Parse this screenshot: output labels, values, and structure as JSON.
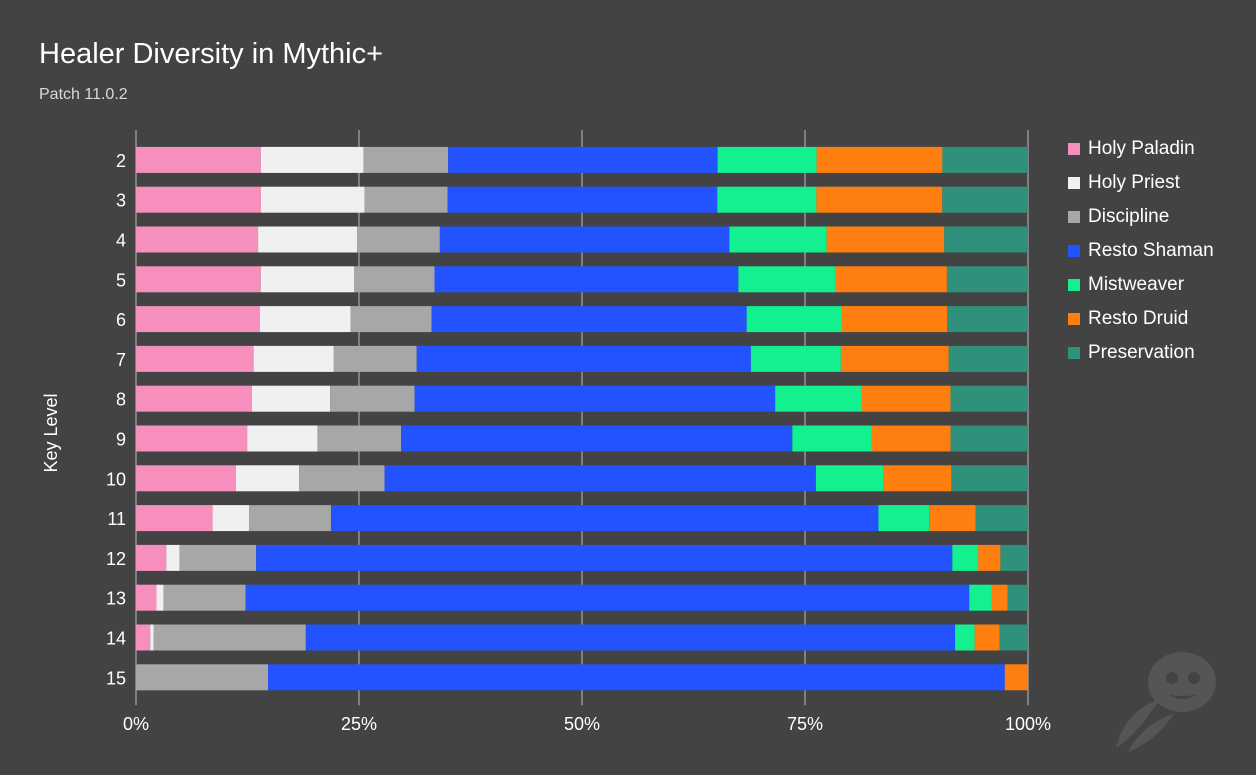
{
  "chart_data": {
    "type": "bar",
    "orientation": "horizontal",
    "stacked": "percent",
    "title": "Healer Diversity in Mythic+",
    "subtitle": "Patch 11.0.2",
    "ylabel": "Key Level",
    "xlabel": "",
    "xlim": [
      0,
      1
    ],
    "x_ticks": [
      "0%",
      "25%",
      "50%",
      "75%",
      "100%"
    ],
    "legend_position": "right",
    "categories": [
      "2",
      "3",
      "4",
      "5",
      "6",
      "7",
      "8",
      "9",
      "10",
      "11",
      "12",
      "13",
      "14",
      "15"
    ],
    "series": [
      {
        "name": "Holy Paladin",
        "color": "#f78fbe",
        "values": [
          0.14,
          0.14,
          0.137,
          0.14,
          0.139,
          0.132,
          0.13,
          0.125,
          0.112,
          0.086,
          0.034,
          0.023,
          0.016,
          0.0
        ]
      },
      {
        "name": "Holy Priest",
        "color": "#f0f0f0",
        "values": [
          0.115,
          0.116,
          0.111,
          0.105,
          0.102,
          0.09,
          0.088,
          0.079,
          0.071,
          0.041,
          0.015,
          0.008,
          0.004,
          0.0
        ]
      },
      {
        "name": "Discipline",
        "color": "#a7a7a7",
        "values": [
          0.095,
          0.093,
          0.093,
          0.09,
          0.091,
          0.093,
          0.095,
          0.094,
          0.096,
          0.092,
          0.086,
          0.092,
          0.171,
          0.148
        ]
      },
      {
        "name": "Resto Shaman",
        "color": "#2352ff",
        "values": [
          0.302,
          0.302,
          0.325,
          0.341,
          0.354,
          0.375,
          0.405,
          0.44,
          0.484,
          0.615,
          0.782,
          0.813,
          0.73,
          0.826
        ]
      },
      {
        "name": "Mistweaver",
        "color": "#12f08f",
        "values": [
          0.111,
          0.111,
          0.109,
          0.109,
          0.107,
          0.101,
          0.097,
          0.089,
          0.076,
          0.057,
          0.029,
          0.025,
          0.022,
          0.0
        ]
      },
      {
        "name": "Resto Druid",
        "color": "#fe7f0f",
        "values": [
          0.141,
          0.141,
          0.132,
          0.125,
          0.118,
          0.121,
          0.1,
          0.089,
          0.076,
          0.052,
          0.025,
          0.018,
          0.028,
          0.026
        ]
      },
      {
        "name": "Preservation",
        "color": "#2f917b",
        "values": [
          0.096,
          0.096,
          0.094,
          0.091,
          0.091,
          0.089,
          0.087,
          0.087,
          0.086,
          0.059,
          0.031,
          0.023,
          0.032,
          0.0
        ]
      }
    ]
  }
}
